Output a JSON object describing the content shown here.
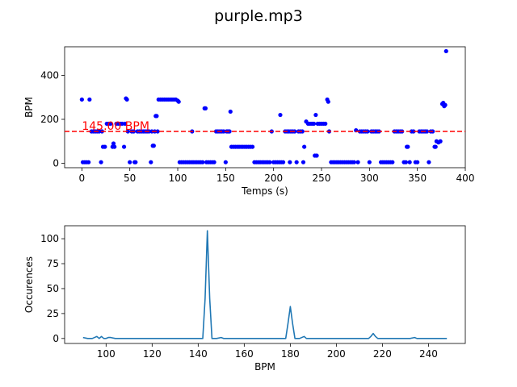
{
  "title": "purple.mp3",
  "colors": {
    "scatter": "#0000ff",
    "line": "#1f77b4",
    "refline": "#ff0000",
    "annotation": "#ff0000"
  },
  "chart_data": [
    {
      "type": "scatter",
      "xlabel": "Temps (s)",
      "ylabel": "BPM",
      "xlim": [
        -18,
        400
      ],
      "ylim": [
        -20,
        530
      ],
      "xticks": [
        0,
        50,
        100,
        150,
        200,
        250,
        300,
        350,
        400
      ],
      "yticks": [
        0,
        200,
        400
      ],
      "reference_line": {
        "y": 145,
        "style": "dashed",
        "label": "145.00 BPM"
      },
      "points": [
        [
          0,
          290
        ],
        [
          1,
          5
        ],
        [
          3,
          5
        ],
        [
          5,
          5
        ],
        [
          7,
          5
        ],
        [
          8,
          290
        ],
        [
          10,
          145
        ],
        [
          12,
          145
        ],
        [
          14,
          145
        ],
        [
          16,
          145
        ],
        [
          18,
          145
        ],
        [
          20,
          5
        ],
        [
          21,
          145
        ],
        [
          22,
          75
        ],
        [
          24,
          75
        ],
        [
          26,
          180
        ],
        [
          28,
          180
        ],
        [
          30,
          180
        ],
        [
          32,
          75
        ],
        [
          33,
          90
        ],
        [
          34,
          75
        ],
        [
          36,
          180
        ],
        [
          38,
          180
        ],
        [
          40,
          180
        ],
        [
          42,
          180
        ],
        [
          44,
          75
        ],
        [
          45,
          180
        ],
        [
          46,
          295
        ],
        [
          47,
          290
        ],
        [
          48,
          145
        ],
        [
          50,
          5
        ],
        [
          52,
          145
        ],
        [
          54,
          145
        ],
        [
          55,
          5
        ],
        [
          56,
          5
        ],
        [
          58,
          145
        ],
        [
          60,
          145
        ],
        [
          62,
          145
        ],
        [
          64,
          145
        ],
        [
          66,
          145
        ],
        [
          68,
          145
        ],
        [
          70,
          145
        ],
        [
          72,
          5
        ],
        [
          73,
          145
        ],
        [
          74,
          80
        ],
        [
          75,
          80
        ],
        [
          76,
          145
        ],
        [
          77,
          215
        ],
        [
          78,
          215
        ],
        [
          79,
          145
        ],
        [
          80,
          290
        ],
        [
          82,
          290
        ],
        [
          84,
          290
        ],
        [
          86,
          290
        ],
        [
          88,
          290
        ],
        [
          90,
          290
        ],
        [
          92,
          290
        ],
        [
          94,
          290
        ],
        [
          96,
          290
        ],
        [
          98,
          290
        ],
        [
          100,
          285
        ],
        [
          101,
          280
        ],
        [
          102,
          5
        ],
        [
          104,
          5
        ],
        [
          106,
          5
        ],
        [
          108,
          5
        ],
        [
          110,
          5
        ],
        [
          112,
          5
        ],
        [
          114,
          5
        ],
        [
          115,
          145
        ],
        [
          116,
          5
        ],
        [
          118,
          5
        ],
        [
          120,
          5
        ],
        [
          122,
          5
        ],
        [
          124,
          5
        ],
        [
          126,
          5
        ],
        [
          128,
          250
        ],
        [
          129,
          250
        ],
        [
          130,
          5
        ],
        [
          132,
          5
        ],
        [
          134,
          5
        ],
        [
          136,
          5
        ],
        [
          138,
          5
        ],
        [
          140,
          145
        ],
        [
          142,
          145
        ],
        [
          144,
          145
        ],
        [
          146,
          145
        ],
        [
          148,
          145
        ],
        [
          150,
          5
        ],
        [
          151,
          145
        ],
        [
          152,
          145
        ],
        [
          153,
          145
        ],
        [
          154,
          145
        ],
        [
          155,
          235
        ],
        [
          156,
          75
        ],
        [
          158,
          75
        ],
        [
          160,
          75
        ],
        [
          162,
          75
        ],
        [
          164,
          75
        ],
        [
          166,
          75
        ],
        [
          168,
          75
        ],
        [
          170,
          75
        ],
        [
          172,
          75
        ],
        [
          174,
          75
        ],
        [
          176,
          75
        ],
        [
          178,
          75
        ],
        [
          180,
          5
        ],
        [
          182,
          5
        ],
        [
          184,
          5
        ],
        [
          186,
          5
        ],
        [
          188,
          5
        ],
        [
          190,
          5
        ],
        [
          192,
          5
        ],
        [
          194,
          5
        ],
        [
          196,
          5
        ],
        [
          198,
          145
        ],
        [
          200,
          5
        ],
        [
          202,
          5
        ],
        [
          204,
          5
        ],
        [
          206,
          5
        ],
        [
          207,
          220
        ],
        [
          208,
          5
        ],
        [
          210,
          5
        ],
        [
          212,
          145
        ],
        [
          214,
          145
        ],
        [
          216,
          145
        ],
        [
          217,
          5
        ],
        [
          218,
          145
        ],
        [
          220,
          145
        ],
        [
          222,
          145
        ],
        [
          224,
          5
        ],
        [
          226,
          145
        ],
        [
          228,
          145
        ],
        [
          230,
          145
        ],
        [
          231,
          5
        ],
        [
          232,
          75
        ],
        [
          234,
          190
        ],
        [
          236,
          180
        ],
        [
          238,
          180
        ],
        [
          240,
          180
        ],
        [
          242,
          180
        ],
        [
          243,
          35
        ],
        [
          244,
          220
        ],
        [
          245,
          35
        ],
        [
          246,
          180
        ],
        [
          248,
          180
        ],
        [
          250,
          180
        ],
        [
          252,
          180
        ],
        [
          254,
          180
        ],
        [
          256,
          290
        ],
        [
          257,
          280
        ],
        [
          258,
          145
        ],
        [
          260,
          5
        ],
        [
          262,
          5
        ],
        [
          264,
          5
        ],
        [
          266,
          5
        ],
        [
          268,
          5
        ],
        [
          270,
          5
        ],
        [
          272,
          5
        ],
        [
          274,
          5
        ],
        [
          276,
          5
        ],
        [
          278,
          5
        ],
        [
          280,
          5
        ],
        [
          282,
          5
        ],
        [
          284,
          5
        ],
        [
          286,
          150
        ],
        [
          288,
          5
        ],
        [
          290,
          145
        ],
        [
          292,
          145
        ],
        [
          294,
          145
        ],
        [
          296,
          145
        ],
        [
          298,
          145
        ],
        [
          300,
          5
        ],
        [
          302,
          145
        ],
        [
          304,
          145
        ],
        [
          306,
          145
        ],
        [
          308,
          145
        ],
        [
          310,
          145
        ],
        [
          312,
          5
        ],
        [
          314,
          5
        ],
        [
          316,
          5
        ],
        [
          318,
          5
        ],
        [
          320,
          5
        ],
        [
          322,
          5
        ],
        [
          324,
          5
        ],
        [
          326,
          145
        ],
        [
          328,
          145
        ],
        [
          330,
          145
        ],
        [
          332,
          145
        ],
        [
          334,
          145
        ],
        [
          336,
          5
        ],
        [
          338,
          5
        ],
        [
          339,
          75
        ],
        [
          340,
          75
        ],
        [
          342,
          5
        ],
        [
          344,
          145
        ],
        [
          346,
          145
        ],
        [
          348,
          5
        ],
        [
          350,
          5
        ],
        [
          352,
          145
        ],
        [
          354,
          145
        ],
        [
          356,
          145
        ],
        [
          358,
          145
        ],
        [
          360,
          145
        ],
        [
          362,
          5
        ],
        [
          364,
          145
        ],
        [
          366,
          145
        ],
        [
          368,
          75
        ],
        [
          369,
          75
        ],
        [
          370,
          100
        ],
        [
          372,
          95
        ],
        [
          374,
          100
        ],
        [
          376,
          270
        ],
        [
          377,
          275
        ],
        [
          378,
          260
        ],
        [
          379,
          265
        ],
        [
          380,
          510
        ]
      ]
    },
    {
      "type": "line",
      "xlabel": "BPM",
      "ylabel": "Occurences",
      "xlim": [
        82,
        256
      ],
      "ylim": [
        -5,
        113
      ],
      "xticks": [
        100,
        120,
        140,
        160,
        180,
        200,
        220,
        240
      ],
      "yticks": [
        0,
        25,
        50,
        75,
        100
      ],
      "x": [
        90,
        92,
        94,
        96,
        97,
        98,
        99,
        100,
        101,
        102,
        104,
        106,
        120,
        140,
        142,
        143,
        144,
        145,
        146,
        148,
        150,
        151,
        152,
        170,
        176,
        178,
        179,
        180,
        181,
        182,
        184,
        186,
        187,
        188,
        200,
        214,
        215,
        216,
        217,
        218,
        232,
        234,
        235,
        236,
        248
      ],
      "y": [
        1,
        0,
        0,
        2,
        0,
        2,
        0,
        0,
        1,
        1,
        0,
        0,
        0,
        0,
        0,
        40,
        108,
        40,
        0,
        0,
        1,
        0,
        0,
        0,
        0,
        0,
        15,
        32,
        15,
        0,
        0,
        2,
        0,
        0,
        0,
        0,
        2,
        5,
        2,
        0,
        0,
        1,
        0,
        0,
        0
      ]
    }
  ]
}
